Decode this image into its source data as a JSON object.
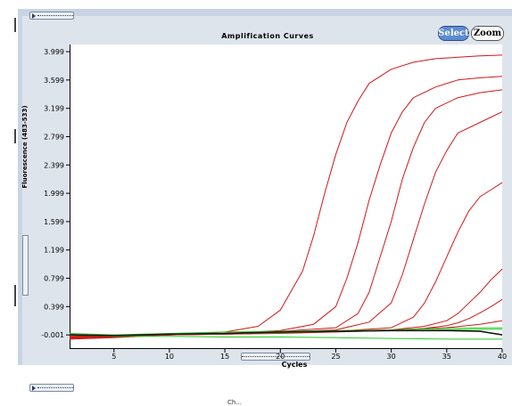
{
  "chart_data": {
    "type": "line",
    "title": "Amplification Curves",
    "xlabel": "Cycles",
    "ylabel": "Fluorescence (483-533)",
    "xlim": [
      1,
      40
    ],
    "ylim": [
      -0.2,
      4.1
    ],
    "x_ticks": [
      5,
      10,
      15,
      20,
      25,
      30,
      35,
      40
    ],
    "y_ticks": [
      "3.999",
      "3.599",
      "3.199",
      "2.799",
      "2.399",
      "1.999",
      "1.599",
      "1.199",
      "0.799",
      "0.399",
      "-0.001"
    ],
    "y_tick_values": [
      3.999,
      3.599,
      3.199,
      2.799,
      2.399,
      1.999,
      1.599,
      1.199,
      0.799,
      0.399,
      -0.001
    ],
    "grid": false,
    "series": [
      {
        "color": "#d01818",
        "x": [
          1,
          5,
          10,
          15,
          18,
          20,
          22,
          23,
          24,
          25,
          26,
          27,
          28,
          30,
          32,
          34,
          36,
          38,
          40
        ],
        "y": [
          -0.05,
          -0.03,
          0.0,
          0.04,
          0.12,
          0.35,
          0.9,
          1.4,
          2.0,
          2.55,
          3.0,
          3.3,
          3.55,
          3.75,
          3.85,
          3.9,
          3.92,
          3.94,
          3.95
        ]
      },
      {
        "color": "#d01818",
        "x": [
          1,
          5,
          10,
          15,
          20,
          23,
          25,
          26,
          27,
          28,
          29,
          30,
          31,
          32,
          34,
          36,
          38,
          40
        ],
        "y": [
          -0.04,
          -0.02,
          0.0,
          0.02,
          0.06,
          0.15,
          0.4,
          0.8,
          1.3,
          1.9,
          2.4,
          2.85,
          3.15,
          3.35,
          3.5,
          3.6,
          3.63,
          3.65
        ]
      },
      {
        "color": "#d01818",
        "x": [
          1,
          5,
          10,
          15,
          20,
          25,
          27,
          28,
          29,
          30,
          31,
          32,
          33,
          34,
          36,
          38,
          40
        ],
        "y": [
          -0.03,
          -0.02,
          0.0,
          0.02,
          0.05,
          0.1,
          0.3,
          0.6,
          1.1,
          1.6,
          2.2,
          2.65,
          3.0,
          3.2,
          3.35,
          3.42,
          3.46
        ]
      },
      {
        "color": "#d01818",
        "x": [
          1,
          5,
          10,
          15,
          20,
          25,
          28,
          30,
          31,
          32,
          33,
          34,
          35,
          36,
          38,
          40
        ],
        "y": [
          -0.02,
          -0.01,
          0.0,
          0.02,
          0.04,
          0.07,
          0.18,
          0.45,
          0.85,
          1.35,
          1.85,
          2.3,
          2.6,
          2.85,
          3.0,
          3.15
        ]
      },
      {
        "color": "#d01818",
        "x": [
          1,
          5,
          10,
          15,
          20,
          25,
          30,
          32,
          33,
          34,
          35,
          36,
          37,
          38,
          39,
          40
        ],
        "y": [
          -0.03,
          -0.02,
          0.0,
          0.01,
          0.03,
          0.05,
          0.1,
          0.25,
          0.45,
          0.75,
          1.1,
          1.45,
          1.75,
          1.95,
          2.05,
          2.15
        ]
      },
      {
        "color": "#d01818",
        "x": [
          1,
          5,
          10,
          15,
          20,
          25,
          30,
          33,
          35,
          36,
          37,
          38,
          39,
          40
        ],
        "y": [
          -0.04,
          -0.02,
          0.0,
          0.01,
          0.03,
          0.05,
          0.07,
          0.12,
          0.2,
          0.3,
          0.45,
          0.6,
          0.78,
          0.93
        ]
      },
      {
        "color": "#d01818",
        "x": [
          1,
          5,
          10,
          15,
          20,
          25,
          30,
          33,
          35,
          36,
          37,
          38,
          39,
          40
        ],
        "y": [
          -0.02,
          -0.02,
          0.0,
          0.01,
          0.02,
          0.04,
          0.06,
          0.09,
          0.13,
          0.17,
          0.23,
          0.31,
          0.4,
          0.5
        ]
      },
      {
        "color": "#d01818",
        "x": [
          1,
          5,
          10,
          15,
          20,
          25,
          30,
          35,
          38,
          40
        ],
        "y": [
          -0.06,
          -0.04,
          0.0,
          0.02,
          0.04,
          0.05,
          0.07,
          0.1,
          0.15,
          0.2
        ]
      },
      {
        "color": "#22cc22",
        "x": [
          1,
          5,
          10,
          15,
          20,
          25,
          30,
          35,
          40
        ],
        "y": [
          0.01,
          -0.02,
          -0.02,
          -0.03,
          -0.03,
          -0.04,
          -0.05,
          -0.06,
          -0.06
        ]
      },
      {
        "color": "#22cc22",
        "x": [
          1,
          5,
          10,
          15,
          20,
          25,
          30,
          35,
          40
        ],
        "y": [
          0.02,
          0.0,
          0.02,
          0.04,
          0.05,
          0.06,
          0.07,
          0.09,
          0.1
        ]
      },
      {
        "color": "#22cc22",
        "x": [
          1,
          5,
          10,
          15,
          20,
          25,
          30,
          35,
          40
        ],
        "y": [
          0.0,
          -0.01,
          0.01,
          0.02,
          0.03,
          0.05,
          0.06,
          0.07,
          0.08
        ]
      },
      {
        "color": "#1a1a1a",
        "x": [
          1,
          5,
          10,
          15,
          20,
          25,
          30,
          35,
          38,
          40
        ],
        "y": [
          0.0,
          -0.01,
          0.01,
          0.02,
          0.04,
          0.05,
          0.06,
          0.06,
          0.05,
          0.0
        ]
      }
    ]
  },
  "controls": {
    "select_label": "Select",
    "zoom_label": "Zoom"
  },
  "footer_text": "Ch..."
}
